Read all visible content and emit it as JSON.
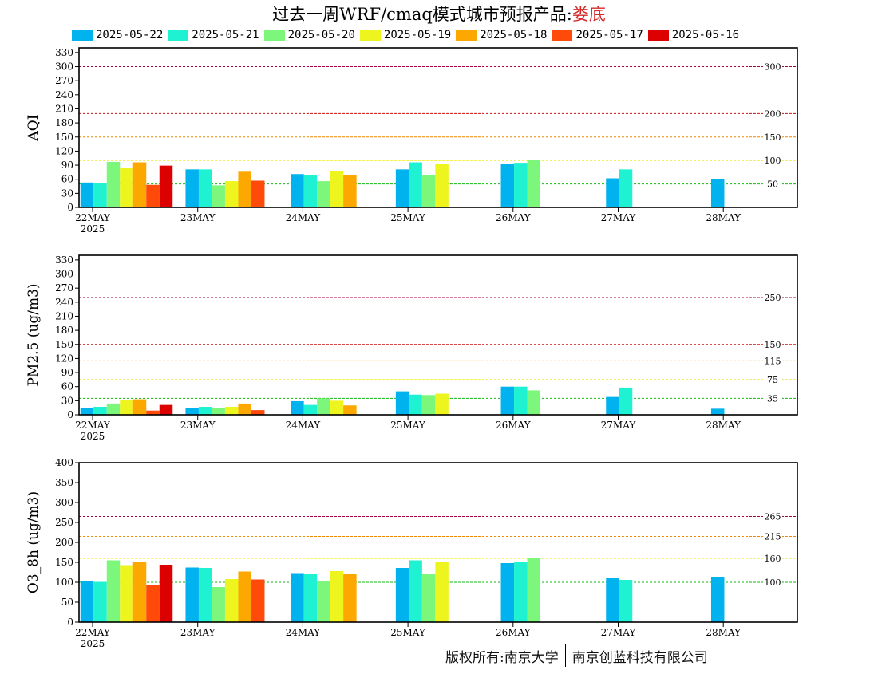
{
  "header": {
    "title": "过去一周WRF/cmaq模式城市预报产品:",
    "city": "娄底",
    "city_color": "#d42a2a"
  },
  "footer": {
    "left": "版权所有:南京大学",
    "right": "南京创蓝科技有限公司"
  },
  "legend": [
    {
      "label": "2025-05-22",
      "color": "#00b2ee"
    },
    {
      "label": "2025-05-21",
      "color": "#1ef2d2"
    },
    {
      "label": "2025-05-20",
      "color": "#7cf77c"
    },
    {
      "label": "2025-05-19",
      "color": "#eef51e"
    },
    {
      "label": "2025-05-18",
      "color": "#fca800"
    },
    {
      "label": "2025-05-17",
      "color": "#ff4a0a"
    },
    {
      "label": "2025-05-16",
      "color": "#dd0000"
    }
  ],
  "chart_data": [
    {
      "type": "bar",
      "ylabel": "AQI",
      "ylim": [
        0,
        340
      ],
      "yticks": [
        0,
        30,
        60,
        90,
        120,
        150,
        180,
        210,
        240,
        270,
        300,
        330
      ],
      "categories": [
        "22MAY",
        "23MAY",
        "24MAY",
        "25MAY",
        "26MAY",
        "27MAY",
        "28MAY"
      ],
      "year_label": "2025",
      "thresholds": [
        {
          "value": 300,
          "label": "300",
          "color": "#aa0044"
        },
        {
          "value": 200,
          "label": "200",
          "color": "#cc1111"
        },
        {
          "value": 150,
          "label": "150",
          "color": "#ee8800"
        },
        {
          "value": 100,
          "label": "100",
          "color": "#e8e800"
        },
        {
          "value": 50,
          "label": "50",
          "color": "#11bb11"
        }
      ],
      "series": [
        {
          "name": "2025-05-22",
          "values": [
            53,
            81,
            71,
            81,
            92,
            62,
            60
          ]
        },
        {
          "name": "2025-05-21",
          "values": [
            52,
            81,
            69,
            96,
            95,
            81,
            null
          ]
        },
        {
          "name": "2025-05-20",
          "values": [
            97,
            47,
            56,
            69,
            101,
            null,
            null
          ]
        },
        {
          "name": "2025-05-19",
          "values": [
            85,
            56,
            77,
            92,
            null,
            null,
            null
          ]
        },
        {
          "name": "2025-05-18",
          "values": [
            96,
            76,
            68,
            null,
            null,
            null,
            null
          ]
        },
        {
          "name": "2025-05-17",
          "values": [
            48,
            57,
            null,
            null,
            null,
            null,
            null
          ]
        },
        {
          "name": "2025-05-16",
          "values": [
            89,
            null,
            null,
            null,
            null,
            null,
            null
          ]
        }
      ]
    },
    {
      "type": "bar",
      "ylabel": "PM2.5 (ug/m3)",
      "ylim": [
        0,
        340
      ],
      "yticks": [
        0,
        30,
        60,
        90,
        120,
        150,
        180,
        210,
        240,
        270,
        300,
        330
      ],
      "categories": [
        "22MAY",
        "23MAY",
        "24MAY",
        "25MAY",
        "26MAY",
        "27MAY",
        "28MAY"
      ],
      "year_label": "2025",
      "thresholds": [
        {
          "value": 250,
          "label": "250",
          "color": "#aa0044"
        },
        {
          "value": 150,
          "label": "150",
          "color": "#cc1111"
        },
        {
          "value": 115,
          "label": "115",
          "color": "#ee8800"
        },
        {
          "value": 75,
          "label": "75",
          "color": "#e8e800"
        },
        {
          "value": 35,
          "label": "35",
          "color": "#11bb11"
        }
      ],
      "series": [
        {
          "name": "2025-05-22",
          "values": [
            14,
            14,
            29,
            50,
            60,
            38,
            13
          ]
        },
        {
          "name": "2025-05-21",
          "values": [
            17,
            17,
            21,
            43,
            60,
            58,
            null
          ]
        },
        {
          "name": "2025-05-20",
          "values": [
            24,
            14,
            35,
            42,
            52,
            null,
            null
          ]
        },
        {
          "name": "2025-05-19",
          "values": [
            31,
            17,
            30,
            45,
            null,
            null,
            null
          ]
        },
        {
          "name": "2025-05-18",
          "values": [
            33,
            24,
            20,
            null,
            null,
            null,
            null
          ]
        },
        {
          "name": "2025-05-17",
          "values": [
            9,
            10,
            null,
            null,
            null,
            null,
            null
          ]
        },
        {
          "name": "2025-05-16",
          "values": [
            21,
            null,
            null,
            null,
            null,
            null,
            null
          ]
        }
      ]
    },
    {
      "type": "bar",
      "ylabel": "O3_8h (ug/m3)",
      "ylim": [
        0,
        400
      ],
      "yticks": [
        0,
        50,
        100,
        150,
        200,
        250,
        300,
        350,
        400
      ],
      "categories": [
        "22MAY",
        "23MAY",
        "24MAY",
        "25MAY",
        "26MAY",
        "27MAY",
        "28MAY"
      ],
      "year_label": "2025",
      "thresholds": [
        {
          "value": 265,
          "label": "265",
          "color": "#aa0044"
        },
        {
          "value": 215,
          "label": "215",
          "color": "#ee8800"
        },
        {
          "value": 160,
          "label": "160",
          "color": "#e8e800"
        },
        {
          "value": 100,
          "label": "100",
          "color": "#11bb11"
        }
      ],
      "series": [
        {
          "name": "2025-05-22",
          "values": [
            102,
            137,
            123,
            136,
            148,
            110,
            112
          ]
        },
        {
          "name": "2025-05-21",
          "values": [
            101,
            136,
            122,
            155,
            152,
            106,
            null
          ]
        },
        {
          "name": "2025-05-20",
          "values": [
            155,
            88,
            103,
            122,
            160,
            null,
            null
          ]
        },
        {
          "name": "2025-05-19",
          "values": [
            143,
            108,
            128,
            150,
            null,
            null,
            null
          ]
        },
        {
          "name": "2025-05-18",
          "values": [
            152,
            127,
            120,
            null,
            null,
            null,
            null
          ]
        },
        {
          "name": "2025-05-17",
          "values": [
            94,
            107,
            null,
            null,
            null,
            null,
            null
          ]
        },
        {
          "name": "2025-05-16",
          "values": [
            144,
            null,
            null,
            null,
            null,
            null,
            null
          ]
        }
      ]
    }
  ]
}
